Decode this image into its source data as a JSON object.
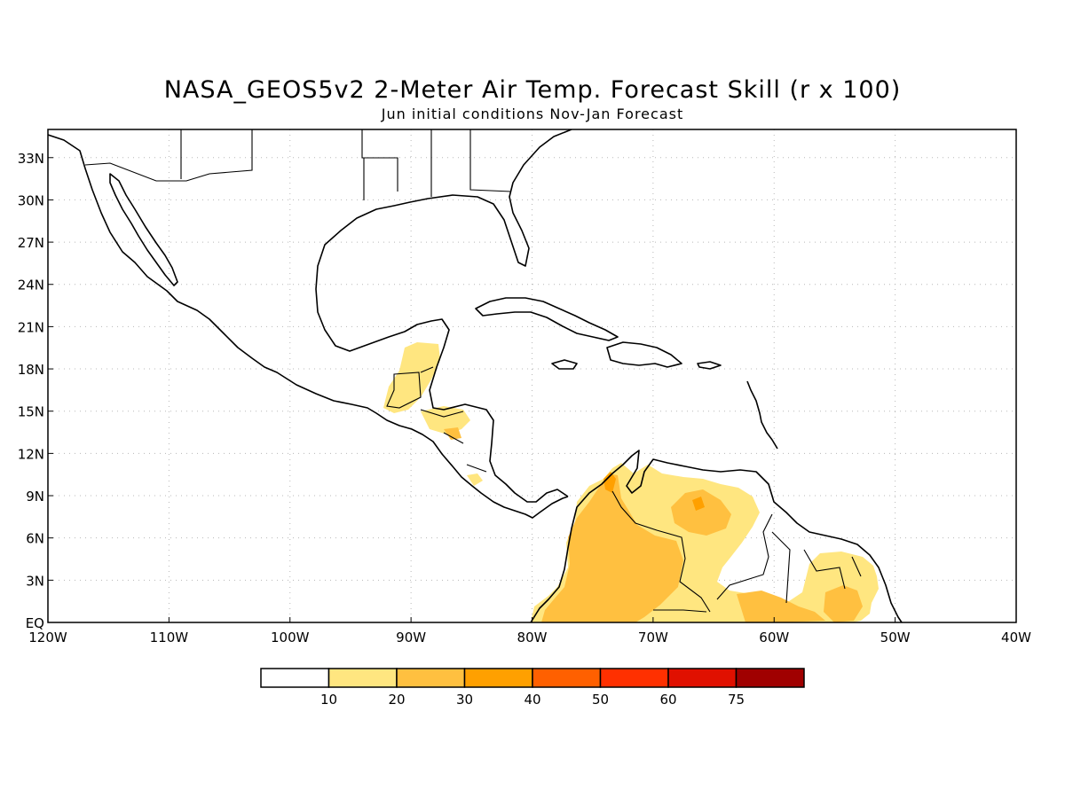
{
  "title": "NASA_GEOS5v2 2-Meter Air Temp. Forecast Skill (r x 100)",
  "subtitle": "Jun initial conditions  Nov-Jan Forecast",
  "map": {
    "lon_range": [
      -120,
      -40
    ],
    "lat_range": [
      0,
      35
    ],
    "lon_ticks": [
      {
        "lon": -120,
        "label": "120W"
      },
      {
        "lon": -110,
        "label": "110W"
      },
      {
        "lon": -100,
        "label": "100W"
      },
      {
        "lon": -90,
        "label": "90W"
      },
      {
        "lon": -80,
        "label": "80W"
      },
      {
        "lon": -70,
        "label": "70W"
      },
      {
        "lon": -60,
        "label": "60W"
      },
      {
        "lon": -50,
        "label": "50W"
      },
      {
        "lon": -40,
        "label": "40W"
      }
    ],
    "lat_ticks": [
      {
        "lat": 0,
        "label": "EQ"
      },
      {
        "lat": 3,
        "label": "3N"
      },
      {
        "lat": 6,
        "label": "6N"
      },
      {
        "lat": 9,
        "label": "9N"
      },
      {
        "lat": 12,
        "label": "12N"
      },
      {
        "lat": 15,
        "label": "15N"
      },
      {
        "lat": 18,
        "label": "18N"
      },
      {
        "lat": 21,
        "label": "21N"
      },
      {
        "lat": 24,
        "label": "24N"
      },
      {
        "lat": 27,
        "label": "27N"
      },
      {
        "lat": 30,
        "label": "30N"
      },
      {
        "lat": 33,
        "label": "33N"
      }
    ]
  },
  "colorbar": {
    "colors": [
      "#ffffff",
      "#ffe680",
      "#ffc040",
      "#ffa000",
      "#ff6000",
      "#ff3000",
      "#e01000",
      "#a00000"
    ],
    "labels": [
      "10",
      "20",
      "30",
      "40",
      "50",
      "60",
      "75"
    ]
  }
}
